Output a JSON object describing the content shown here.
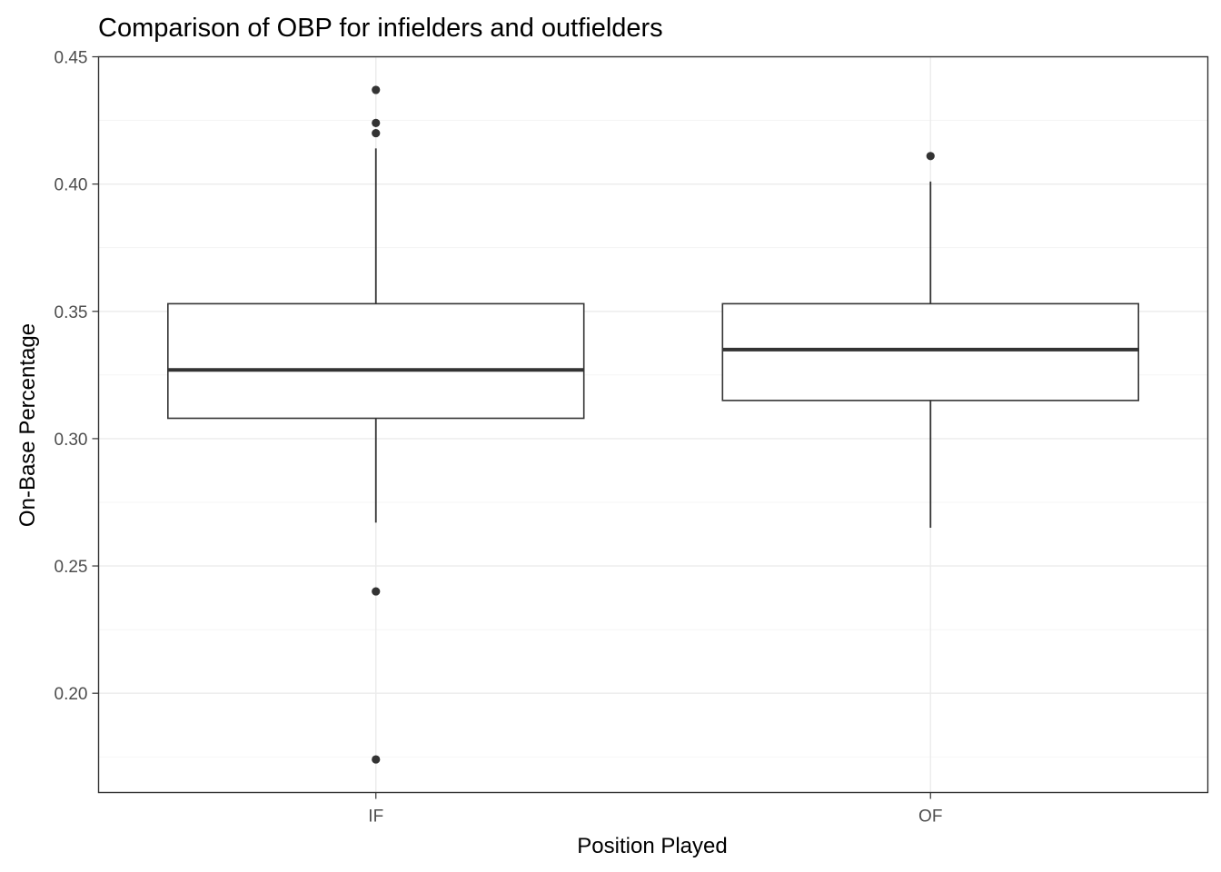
{
  "chart_data": {
    "type": "boxplot",
    "title": "Comparison of OBP for infielders and outfielders",
    "xlabel": "Position Played",
    "ylabel": "On-Base Percentage",
    "ylim": [
      0.161,
      0.45
    ],
    "yticks": [
      "0.20",
      "0.25",
      "0.30",
      "0.35",
      "0.40",
      "0.45"
    ],
    "grid": true,
    "categories": [
      "IF",
      "OF"
    ],
    "boxes": [
      {
        "category": "IF",
        "whisker_low": 0.267,
        "q1": 0.308,
        "median": 0.327,
        "q3": 0.353,
        "whisker_high": 0.414,
        "outliers": [
          0.437,
          0.424,
          0.42,
          0.24,
          0.174
        ]
      },
      {
        "category": "OF",
        "whisker_low": 0.265,
        "q1": 0.315,
        "median": 0.335,
        "q3": 0.353,
        "whisker_high": 0.401,
        "outliers": [
          0.411
        ]
      }
    ]
  }
}
